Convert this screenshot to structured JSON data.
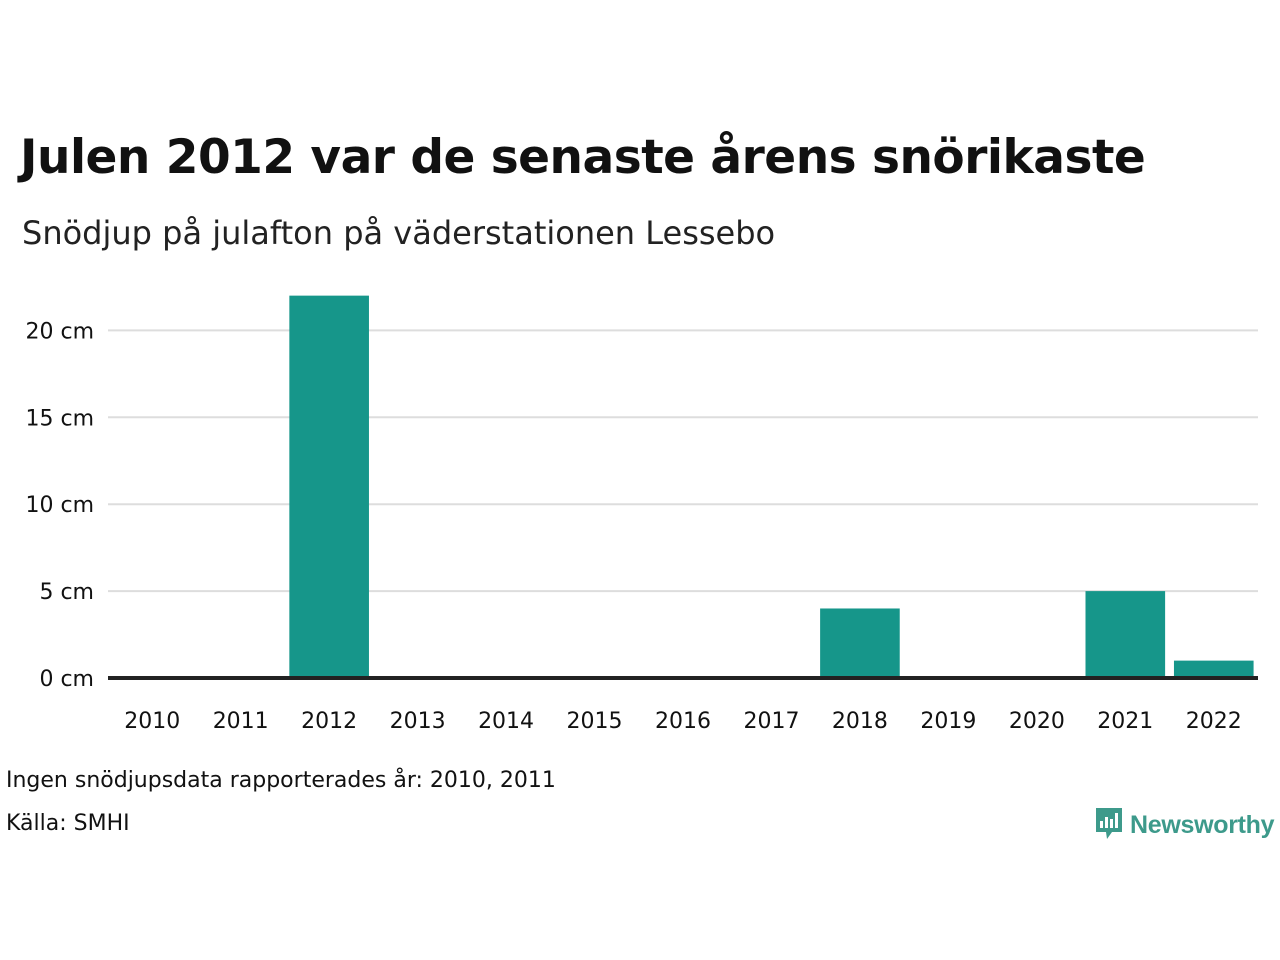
{
  "title": "Julen 2012 var de senaste årens snörikaste",
  "subtitle": "Snödjup på julafton på väderstationen Lessebo",
  "notes": {
    "missing": "Ingen snödjupsdata rapporterades år: 2010, 2011",
    "source": "Källa: SMHI"
  },
  "brand": {
    "name": "Newsworthy",
    "icon": "newsworthy-logo-icon",
    "color": "#3d9a8b"
  },
  "colors": {
    "bar": "#16968a",
    "grid": "#dddddd",
    "baseline": "#222222"
  },
  "chart_data": {
    "type": "bar",
    "categories": [
      "2010",
      "2011",
      "2012",
      "2013",
      "2014",
      "2015",
      "2016",
      "2017",
      "2018",
      "2019",
      "2020",
      "2021",
      "2022"
    ],
    "values": [
      null,
      null,
      22,
      0,
      0,
      0,
      0,
      0,
      4,
      0,
      0,
      5,
      1
    ],
    "ylim": [
      0,
      22
    ],
    "yticks": [
      0,
      5,
      10,
      15,
      20
    ],
    "ytick_labels": [
      "0 cm",
      "5 cm",
      "10 cm",
      "15 cm",
      "20 cm"
    ],
    "grid": true
  }
}
